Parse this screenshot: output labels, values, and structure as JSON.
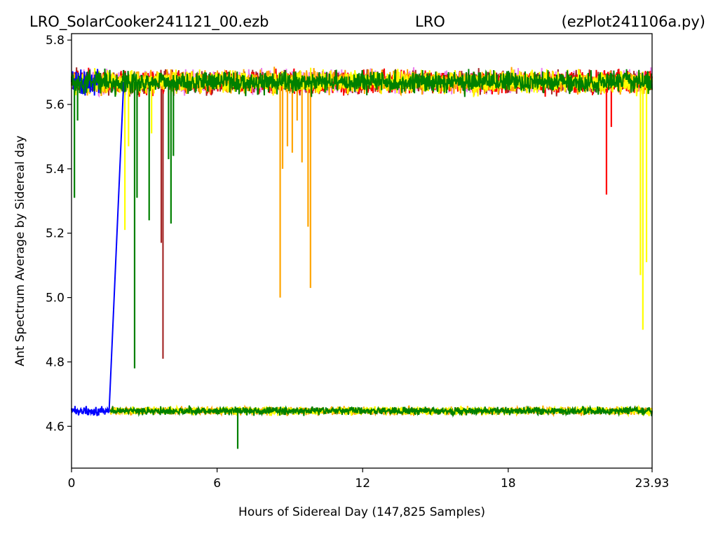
{
  "titles": {
    "left": "LRO_SolarCooker241121_00.ezb",
    "center": "LRO",
    "right": "(ezPlot241106a.py)"
  },
  "chart_data": {
    "type": "line",
    "title": "LRO_SolarCooker241121_00.ezb LRO (ezPlot241106a.py)",
    "xlabel": "Hours of Sidereal Day  (147,825 Samples)",
    "ylabel": "Ant Spectrum Average by Sidereal day",
    "xlim": [
      0,
      23.93
    ],
    "ylim": [
      4.47,
      5.82
    ],
    "x_ticks": [
      0,
      6,
      12,
      18,
      23.93
    ],
    "x_tick_labels": [
      "0",
      "6",
      "12",
      "18",
      "23.93"
    ],
    "y_ticks": [
      4.6,
      4.8,
      5.0,
      5.2,
      5.4,
      5.6,
      5.8
    ],
    "y_tick_labels": [
      "4.6",
      "4.8",
      "5.0",
      "5.2",
      "5.4",
      "5.6",
      "5.8"
    ],
    "grid": false,
    "legend": "none",
    "upper_band": {
      "center": 5.67,
      "low": 5.62,
      "high": 5.72
    },
    "lower_band": {
      "center": 4.648,
      "low": 4.63,
      "high": 4.665
    },
    "series": [
      {
        "color": "#ee82ee",
        "segments": [
          {
            "band": "upper",
            "x_range": [
              0,
              23.93
            ]
          }
        ],
        "dips": []
      },
      {
        "color": "#a52a2a",
        "segments": [
          {
            "band": "upper",
            "x_range": [
              0,
              23.93
            ]
          }
        ],
        "dips": [
          {
            "x": 3.7,
            "y": 5.17
          },
          {
            "x": 3.77,
            "y": 4.81
          }
        ]
      },
      {
        "color": "#ff0000",
        "segments": [
          {
            "band": "upper",
            "x_range": [
              0,
              23.93
            ]
          }
        ],
        "dips": [
          {
            "x": 22.05,
            "y": 5.32
          },
          {
            "x": 22.25,
            "y": 5.53
          }
        ]
      },
      {
        "color": "#ffa500",
        "segments": [
          {
            "band": "upper",
            "x_range": [
              0,
              23.93
            ]
          },
          {
            "band": "lower",
            "x_range": [
              1.6,
              23.93
            ]
          }
        ],
        "dips": [
          {
            "x": 8.6,
            "y": 5.0
          },
          {
            "x": 8.7,
            "y": 5.4
          },
          {
            "x": 8.9,
            "y": 5.47
          },
          {
            "x": 9.1,
            "y": 5.45
          },
          {
            "x": 9.3,
            "y": 5.55
          },
          {
            "x": 9.5,
            "y": 5.42
          },
          {
            "x": 9.75,
            "y": 5.22
          },
          {
            "x": 9.85,
            "y": 5.03
          },
          {
            "x": 13.9,
            "y": 4.66
          }
        ]
      },
      {
        "color": "#ffff00",
        "segments": [
          {
            "band": "upper",
            "x_range": [
              0,
              23.93
            ]
          },
          {
            "band": "lower",
            "x_range": [
              1.6,
              23.93
            ]
          }
        ],
        "dips": [
          {
            "x": 2.2,
            "y": 5.21
          },
          {
            "x": 2.35,
            "y": 5.47
          },
          {
            "x": 3.3,
            "y": 5.51
          },
          {
            "x": 23.45,
            "y": 5.07
          },
          {
            "x": 23.55,
            "y": 4.9
          },
          {
            "x": 23.7,
            "y": 5.11
          }
        ]
      },
      {
        "color": "#0000ff",
        "segments": [
          {
            "band": "upper",
            "x_range": [
              0,
              1.2
            ]
          },
          {
            "band": "lower",
            "x_range": [
              0,
              1.55
            ]
          }
        ],
        "transition": {
          "from": [
            1.55,
            4.648
          ],
          "to": [
            2.15,
            5.67
          ]
        },
        "dips": []
      },
      {
        "color": "#008000",
        "segments": [
          {
            "band": "upper",
            "x_range": [
              0,
              23.93
            ]
          },
          {
            "band": "lower",
            "x_range": [
              1.6,
              23.93
            ]
          }
        ],
        "dips": [
          {
            "x": 0.12,
            "y": 5.31
          },
          {
            "x": 0.25,
            "y": 5.55
          },
          {
            "x": 2.6,
            "y": 4.78
          },
          {
            "x": 2.7,
            "y": 5.31
          },
          {
            "x": 3.2,
            "y": 5.24
          },
          {
            "x": 4.0,
            "y": 5.43
          },
          {
            "x": 4.1,
            "y": 5.23
          },
          {
            "x": 4.2,
            "y": 5.44
          },
          {
            "x": 6.85,
            "y": 4.53
          }
        ]
      }
    ]
  }
}
